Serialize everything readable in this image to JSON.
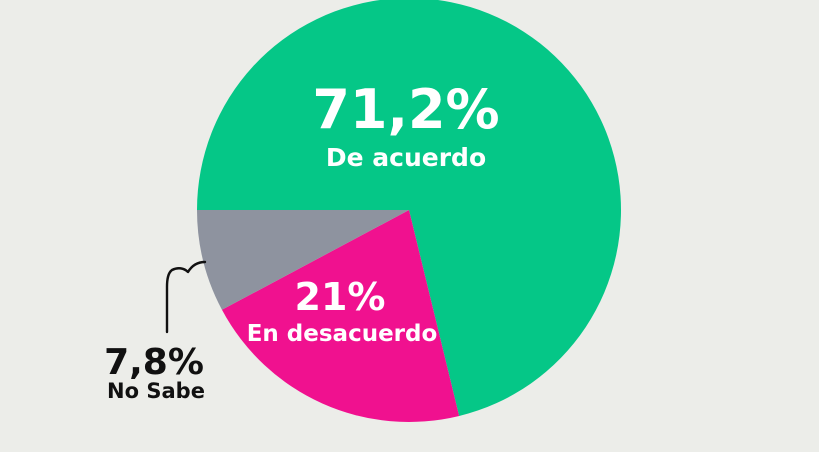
{
  "chart_data": {
    "type": "pie",
    "slices": [
      {
        "label": "De acuerdo",
        "value": 71.2,
        "display": "71,2%",
        "color": "#05c787"
      },
      {
        "label": "En desacuerdo",
        "value": 21.0,
        "display": "21%",
        "color": "#f0118f"
      },
      {
        "label": "No Sabe",
        "value": 7.8,
        "display": "7,8%",
        "color": "#8e939f"
      }
    ],
    "title": "",
    "background": "#ecede9"
  }
}
